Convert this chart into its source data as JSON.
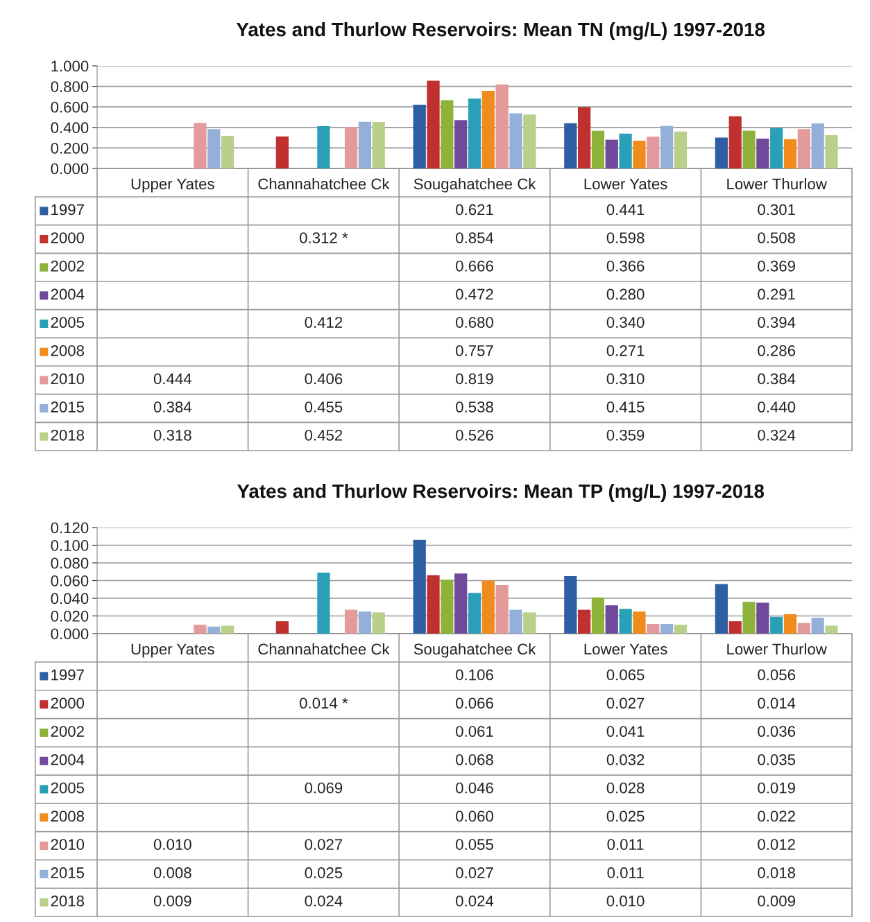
{
  "chart_data": [
    {
      "type": "bar",
      "title": "Yates and Thurlow Reservoirs: Mean TN (mg/L) 1997-2018",
      "categories": [
        "Upper Yates",
        "Channahatchee Ck",
        "Sougahatchee Ck",
        "Lower Yates",
        "Lower Thurlow"
      ],
      "ylim": [
        0,
        1
      ],
      "yticks": [
        {
          "value": 0,
          "label": "0.000"
        },
        {
          "value": 0.2,
          "label": "0.200"
        },
        {
          "value": 0.4,
          "label": "0.400"
        },
        {
          "value": 0.6,
          "label": "0.600"
        },
        {
          "value": 0.8,
          "label": "0.800"
        },
        {
          "value": 1,
          "label": "1.000"
        }
      ],
      "grid": "y",
      "legend": "bottom",
      "series": [
        {
          "name": "1997",
          "color": "#2e5fa3",
          "values": [
            null,
            null,
            0.621,
            0.441,
            0.301
          ],
          "value_labels": [
            null,
            null,
            "0.621",
            "0.441",
            "0.301"
          ]
        },
        {
          "name": "2000",
          "color": "#c0302f",
          "values": [
            null,
            0.312,
            0.854,
            0.598,
            0.508
          ],
          "value_labels": [
            null,
            "0.312 *",
            "0.854",
            "0.598",
            "0.508"
          ]
        },
        {
          "name": "2002",
          "color": "#8db33a",
          "values": [
            null,
            null,
            0.666,
            0.366,
            0.369
          ],
          "value_labels": [
            null,
            null,
            "0.666",
            "0.366",
            "0.369"
          ]
        },
        {
          "name": "2004",
          "color": "#6f4a9a",
          "values": [
            null,
            null,
            0.472,
            0.28,
            0.291
          ],
          "value_labels": [
            null,
            null,
            "0.472",
            "0.280",
            "0.291"
          ]
        },
        {
          "name": "2005",
          "color": "#2aa0b8",
          "values": [
            null,
            0.412,
            0.68,
            0.34,
            0.394
          ],
          "value_labels": [
            null,
            "0.412",
            "0.680",
            "0.340",
            "0.394"
          ]
        },
        {
          "name": "2008",
          "color": "#f08c1e",
          "values": [
            null,
            null,
            0.757,
            0.271,
            0.286
          ],
          "value_labels": [
            null,
            null,
            "0.757",
            "0.271",
            "0.286"
          ]
        },
        {
          "name": "2010",
          "color": "#e39a9a",
          "values": [
            0.444,
            0.406,
            0.819,
            0.31,
            0.384
          ],
          "value_labels": [
            "0.444",
            "0.406",
            "0.819",
            "0.310",
            "0.384"
          ]
        },
        {
          "name": "2015",
          "color": "#94afd9",
          "values": [
            0.384,
            0.455,
            0.538,
            0.415,
            0.44
          ],
          "value_labels": [
            "0.384",
            "0.455",
            "0.538",
            "0.415",
            "0.440"
          ]
        },
        {
          "name": "2018",
          "color": "#b8d08a",
          "values": [
            0.318,
            0.452,
            0.526,
            0.359,
            0.324
          ],
          "value_labels": [
            "0.318",
            "0.452",
            "0.526",
            "0.359",
            "0.324"
          ]
        }
      ]
    },
    {
      "type": "bar",
      "title": "Yates and Thurlow Reservoirs: Mean TP (mg/L) 1997-2018",
      "categories": [
        "Upper Yates",
        "Channahatchee Ck",
        "Sougahatchee Ck",
        "Lower Yates",
        "Lower Thurlow"
      ],
      "ylim": [
        0,
        0.12
      ],
      "yticks": [
        {
          "value": 0,
          "label": "0.000"
        },
        {
          "value": 0.02,
          "label": "0.020"
        },
        {
          "value": 0.04,
          "label": "0.040"
        },
        {
          "value": 0.06,
          "label": "0.060"
        },
        {
          "value": 0.08,
          "label": "0.080"
        },
        {
          "value": 0.1,
          "label": "0.100"
        },
        {
          "value": 0.12,
          "label": "0.120"
        }
      ],
      "grid": "y",
      "legend": "bottom",
      "series": [
        {
          "name": "1997",
          "color": "#2e5fa3",
          "values": [
            null,
            null,
            0.106,
            0.065,
            0.056
          ],
          "value_labels": [
            null,
            null,
            "0.106",
            "0.065",
            "0.056"
          ]
        },
        {
          "name": "2000",
          "color": "#c0302f",
          "values": [
            null,
            0.014,
            0.066,
            0.027,
            0.014
          ],
          "value_labels": [
            null,
            "0.014 *",
            "0.066",
            "0.027",
            "0.014"
          ]
        },
        {
          "name": "2002",
          "color": "#8db33a",
          "values": [
            null,
            null,
            0.061,
            0.041,
            0.036
          ],
          "value_labels": [
            null,
            null,
            "0.061",
            "0.041",
            "0.036"
          ]
        },
        {
          "name": "2004",
          "color": "#6f4a9a",
          "values": [
            null,
            null,
            0.068,
            0.032,
            0.035
          ],
          "value_labels": [
            null,
            null,
            "0.068",
            "0.032",
            "0.035"
          ]
        },
        {
          "name": "2005",
          "color": "#2aa0b8",
          "values": [
            null,
            0.069,
            0.046,
            0.028,
            0.019
          ],
          "value_labels": [
            null,
            "0.069",
            "0.046",
            "0.028",
            "0.019"
          ]
        },
        {
          "name": "2008",
          "color": "#f08c1e",
          "values": [
            null,
            null,
            0.06,
            0.025,
            0.022
          ],
          "value_labels": [
            null,
            null,
            "0.060",
            "0.025",
            "0.022"
          ]
        },
        {
          "name": "2010",
          "color": "#e39a9a",
          "values": [
            0.01,
            0.027,
            0.055,
            0.011,
            0.012
          ],
          "value_labels": [
            "0.010",
            "0.027",
            "0.055",
            "0.011",
            "0.012"
          ]
        },
        {
          "name": "2015",
          "color": "#94afd9",
          "values": [
            0.008,
            0.025,
            0.027,
            0.011,
            0.018
          ],
          "value_labels": [
            "0.008",
            "0.025",
            "0.027",
            "0.011",
            "0.018"
          ]
        },
        {
          "name": "2018",
          "color": "#b8d08a",
          "values": [
            0.009,
            0.024,
            0.024,
            0.01,
            0.009
          ],
          "value_labels": [
            "0.009",
            "0.024",
            "0.024",
            "0.010",
            "0.009"
          ]
        }
      ]
    }
  ]
}
